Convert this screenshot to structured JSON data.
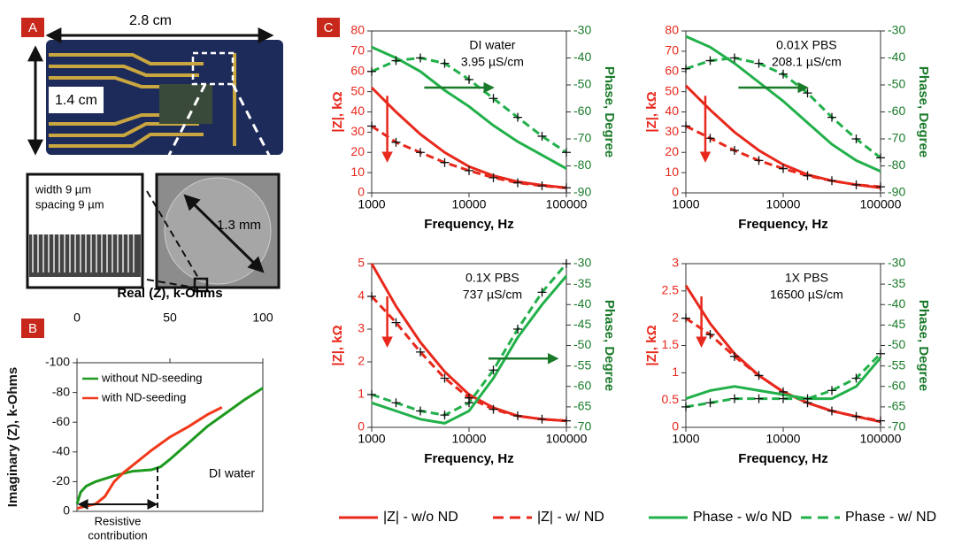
{
  "panel_labels": [
    "A",
    "B",
    "C"
  ],
  "photo": {
    "width_label": "2.8 cm",
    "height_label": "1.4 cm",
    "inset_left": [
      "width 9 µm",
      "spacing 9 µm"
    ],
    "inset_right": "1.3 mm"
  },
  "legend": [
    {
      "name": "|Z| - w/o ND",
      "color": "#e8281c",
      "dashed": false
    },
    {
      "name": "|Z| - w/ ND",
      "color": "#e8281c",
      "dashed": true
    },
    {
      "name": "Phase - w/o ND",
      "color": "#22b04a",
      "dashed": false
    },
    {
      "name": "Phase - w/ ND",
      "color": "#22b04a",
      "dashed": true
    }
  ],
  "chart_data": [
    {
      "type": "line",
      "xlabel": "Real (Z), k-Ohms",
      "ylabel": "Imaginary (Z), k-Ohms",
      "x_axis": "top",
      "xlim": [
        0,
        100
      ],
      "xticks": [
        0,
        50,
        100
      ],
      "ylim": [
        0,
        -100
      ],
      "yticks": [
        -100,
        -80,
        -60,
        -40,
        -20,
        0
      ],
      "legend": "upper left",
      "annotations": [
        "DI water",
        "Resistive",
        "contribution"
      ],
      "series": [
        {
          "name": "without ND-seeding",
          "color": "#1e9a1e",
          "x": [
            0,
            2,
            5,
            10,
            20,
            30,
            40,
            45,
            50,
            60,
            70,
            80,
            90,
            100
          ],
          "values": [
            -5,
            -13,
            -17,
            -20,
            -24,
            -27,
            -28,
            -30,
            -35,
            -46,
            -57,
            -66,
            -75,
            -83
          ]
        },
        {
          "name": "with ND-seeding",
          "color": "#f03a1a",
          "x": [
            0,
            10,
            15,
            20,
            25,
            30,
            40,
            50,
            60,
            70,
            78
          ],
          "values": [
            -2,
            -5,
            -10,
            -20,
            -26,
            -31,
            -41,
            -50,
            -57,
            -65,
            -70
          ]
        }
      ]
    },
    {
      "type": "line",
      "xlog": true,
      "xlabel": "Frequency, Hz",
      "ylabel": "|Z|, kΩ",
      "y2label": "Phase, Degree",
      "y_color": "#e8281c",
      "y2_color": "#1a7a2a",
      "annotation": [
        "DI water",
        "3.95 µS/cm"
      ],
      "x": [
        1000,
        1778,
        3162,
        5623,
        10000,
        17783,
        31623,
        56234,
        100000
      ],
      "xlim": [
        1000,
        100000
      ],
      "xticks": [
        1000,
        10000,
        100000
      ],
      "ylim": [
        0,
        80
      ],
      "yticks": [
        0,
        10,
        20,
        30,
        40,
        50,
        60,
        70,
        80
      ],
      "y2lim": [
        -90,
        -30
      ],
      "y2ticks": [
        -90,
        -80,
        -70,
        -60,
        -50,
        -40,
        -30
      ],
      "series": [
        {
          "color": "#e8281c",
          "dashed": false,
          "values": [
            52,
            40,
            29,
            20,
            13,
            8.5,
            5.5,
            3.8,
            2.5
          ]
        },
        {
          "color": "#e8281c",
          "dashed": true,
          "values": [
            33,
            25,
            20,
            15,
            11,
            7.5,
            5,
            3.5,
            2.5
          ]
        },
        {
          "color": "#22b04a",
          "dashed": false,
          "axis": "y2",
          "values": [
            -36,
            -40,
            -45,
            -52,
            -58,
            -65,
            -71,
            -76,
            -81
          ]
        },
        {
          "color": "#22b04a",
          "dashed": true,
          "axis": "y2",
          "values": [
            -45,
            -41,
            -40,
            -42,
            -48,
            -55,
            -62,
            -69,
            -75
          ]
        }
      ]
    },
    {
      "type": "line",
      "xlog": true,
      "xlabel": "Frequency, Hz",
      "ylabel": "|Z|, kΩ",
      "y2label": "Phase, Degree",
      "y_color": "#e8281c",
      "y2_color": "#1a7a2a",
      "annotation": [
        "0.01X PBS",
        "208.1 µS/cm"
      ],
      "x": [
        1000,
        1778,
        3162,
        5623,
        10000,
        17783,
        31623,
        56234,
        100000
      ],
      "xlim": [
        1000,
        100000
      ],
      "xticks": [
        1000,
        10000,
        100000
      ],
      "ylim": [
        0,
        80
      ],
      "yticks": [
        0,
        10,
        20,
        30,
        40,
        50,
        60,
        70,
        80
      ],
      "y2lim": [
        -90,
        -30
      ],
      "y2ticks": [
        -90,
        -80,
        -70,
        -60,
        -50,
        -40,
        -30
      ],
      "series": [
        {
          "color": "#e8281c",
          "dashed": false,
          "values": [
            53,
            41,
            30,
            21,
            14,
            9,
            6,
            4,
            2.5
          ]
        },
        {
          "color": "#e8281c",
          "dashed": true,
          "values": [
            33,
            27,
            21,
            16,
            12,
            8.5,
            6,
            4,
            3
          ]
        },
        {
          "color": "#22b04a",
          "dashed": false,
          "axis": "y2",
          "values": [
            -32,
            -36,
            -42,
            -49,
            -56,
            -64,
            -72,
            -78,
            -82
          ]
        },
        {
          "color": "#22b04a",
          "dashed": true,
          "axis": "y2",
          "values": [
            -44,
            -41,
            -40,
            -42,
            -46,
            -53,
            -62,
            -70,
            -77
          ]
        }
      ]
    },
    {
      "type": "line",
      "xlog": true,
      "xlabel": "Frequency, Hz",
      "ylabel": "|Z|, kΩ",
      "y2label": "Phase, Degree",
      "y_color": "#e8281c",
      "y2_color": "#1a7a2a",
      "annotation": [
        "0.1X PBS",
        "737 µS/cm"
      ],
      "x": [
        1000,
        1778,
        3162,
        5623,
        10000,
        17783,
        31623,
        56234,
        100000
      ],
      "xlim": [
        1000,
        100000
      ],
      "xticks": [
        1000,
        10000,
        100000
      ],
      "ylim": [
        0,
        5
      ],
      "yticks": [
        0,
        1,
        2,
        3,
        4,
        5
      ],
      "y2lim": [
        -70,
        -30
      ],
      "y2ticks": [
        -70,
        -65,
        -60,
        -55,
        -50,
        -45,
        -40,
        -35,
        -30
      ],
      "series": [
        {
          "color": "#e8281c",
          "dashed": false,
          "values": [
            5,
            3.7,
            2.6,
            1.7,
            1.0,
            0.6,
            0.35,
            0.25,
            0.2
          ]
        },
        {
          "color": "#e8281c",
          "dashed": true,
          "values": [
            4.0,
            3.2,
            2.3,
            1.5,
            0.9,
            0.55,
            0.35,
            0.25,
            0.2
          ]
        },
        {
          "color": "#22b04a",
          "dashed": false,
          "axis": "y2",
          "values": [
            -64,
            -66,
            -68,
            -69,
            -66,
            -58,
            -48,
            -40,
            -33
          ]
        },
        {
          "color": "#22b04a",
          "dashed": true,
          "axis": "y2",
          "values": [
            -62,
            -64,
            -66,
            -67,
            -64,
            -56,
            -46,
            -37,
            -30
          ]
        }
      ]
    },
    {
      "type": "line",
      "xlog": true,
      "xlabel": "Frequency, Hz",
      "ylabel": "|Z|, kΩ",
      "y2label": "Phase, Degree",
      "y_color": "#e8281c",
      "y2_color": "#1a7a2a",
      "annotation": [
        "1X PBS",
        "16500 µS/cm"
      ],
      "x": [
        1000,
        1778,
        3162,
        5623,
        10000,
        17783,
        31623,
        56234,
        100000
      ],
      "xlim": [
        1000,
        100000
      ],
      "xticks": [
        1000,
        10000,
        100000
      ],
      "ylim": [
        0,
        3
      ],
      "yticks": [
        0,
        0.5,
        1,
        1.5,
        2,
        2.5,
        3
      ],
      "y2lim": [
        -70,
        -30
      ],
      "y2ticks": [
        -70,
        -65,
        -60,
        -55,
        -50,
        -45,
        -40,
        -35,
        -30
      ],
      "series": [
        {
          "color": "#e8281c",
          "dashed": false,
          "values": [
            2.6,
            1.9,
            1.35,
            0.95,
            0.65,
            0.45,
            0.3,
            0.2,
            0.1
          ]
        },
        {
          "color": "#e8281c",
          "dashed": true,
          "values": [
            2.0,
            1.7,
            1.3,
            0.95,
            0.65,
            0.45,
            0.3,
            0.2,
            0.12
          ]
        },
        {
          "color": "#22b04a",
          "dashed": false,
          "axis": "y2",
          "values": [
            -63,
            -61,
            -60,
            -61,
            -62,
            -63,
            -63,
            -60,
            -53
          ]
        },
        {
          "color": "#22b04a",
          "dashed": true,
          "axis": "y2",
          "values": [
            -65,
            -64,
            -63,
            -63,
            -63,
            -63,
            -61,
            -58,
            -52
          ]
        }
      ]
    }
  ]
}
